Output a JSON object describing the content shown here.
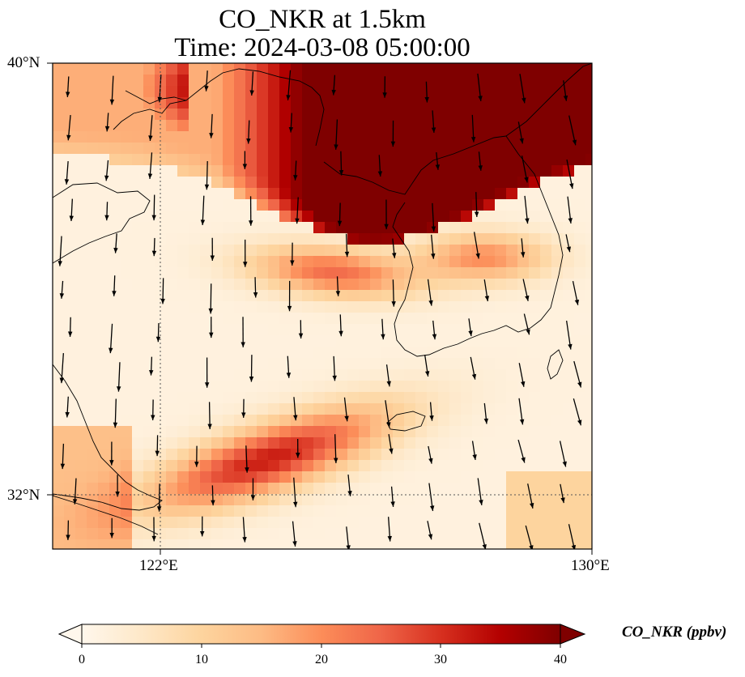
{
  "title_line1": "CO_NKR at 1.5km",
  "title_line2": "Time: 2024-03-08 05:00:00",
  "map": {
    "type": "heatmap",
    "lon_range": [
      119.8,
      130
    ],
    "lat_range": [
      30.9,
      40
    ],
    "lon_ticks": [
      {
        "value": 122,
        "label": "122°E"
      },
      {
        "value": 130,
        "label": "130°E"
      }
    ],
    "lat_ticks": [
      {
        "value": 40,
        "label": "40°N"
      },
      {
        "value": 32,
        "label": "32°N"
      }
    ],
    "gridlines": "dotted at 122°E and 32°N",
    "field_label": "CO_NKR concentration with wind vectors and coastlines",
    "high_regions": [
      "band across northern Yellow Sea / Bohai / Korea north of ~37.5°N (above 40)",
      "secondary plume near 36.5°N 124–126°E",
      "plume over East China Sea south of 33°N"
    ],
    "wind": "predominantly from north-northwest"
  },
  "colorbar": {
    "colormap": "OrRd",
    "min": 0,
    "max": 40,
    "extend": "both",
    "ticks": [
      "0",
      "10",
      "20",
      "30",
      "40"
    ],
    "label": "CO_NKR (ppbv)",
    "colors": [
      "#fff7ec",
      "#fee8c8",
      "#fdd49e",
      "#fdbb84",
      "#fc8d59",
      "#ef6548",
      "#d7301f",
      "#b30000",
      "#7f0000"
    ]
  }
}
